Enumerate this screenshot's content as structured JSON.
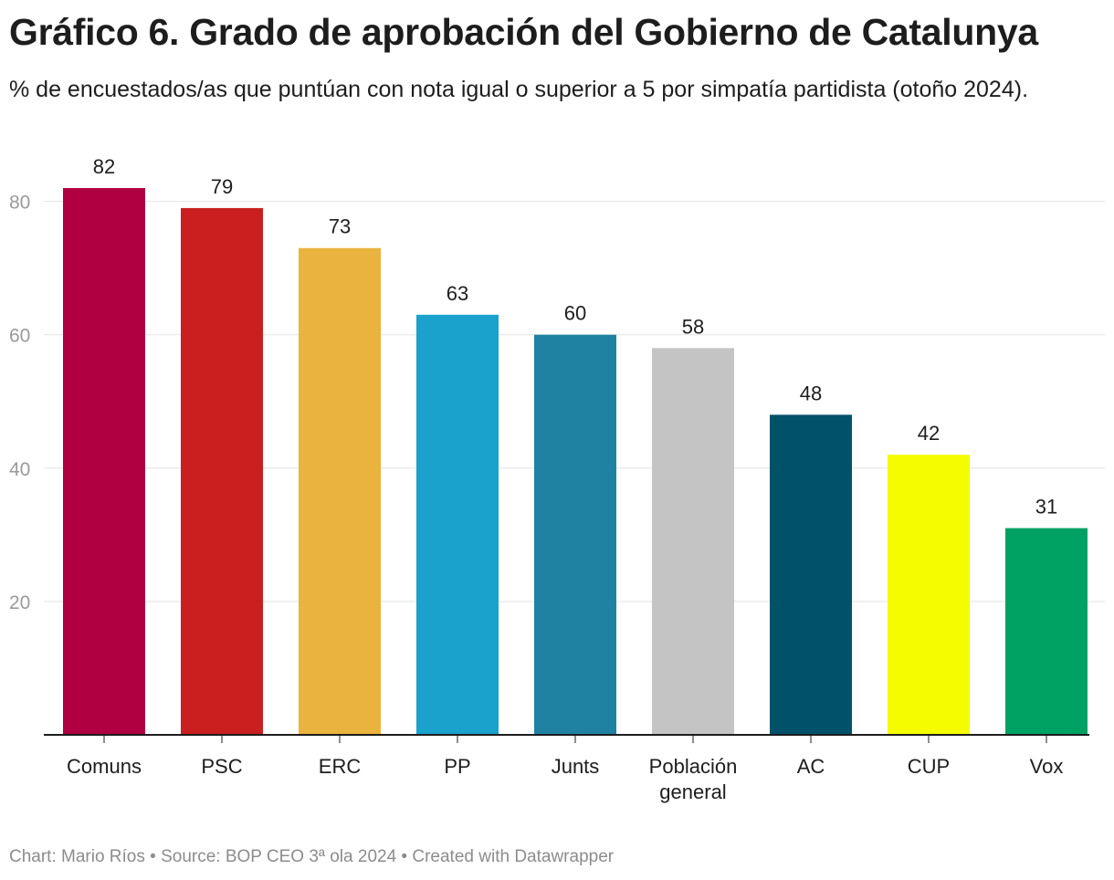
{
  "title": "Gráfico 6. Grado de aprobación del Gobierno de Catalunya",
  "subtitle": "% de encuestados/as que puntúan con nota igual o superior a 5 por simpatía partidista (otoño 2024).",
  "footer": {
    "author": "Chart: Mario Ríos",
    "separator": " • ",
    "source": "Source: BOP CEO 3ª ola 2024",
    "credit": "Created with Datawrapper"
  },
  "chart_data": {
    "type": "bar",
    "title": "Gráfico 6. Grado de aprobación del Gobierno de Catalunya",
    "subtitle": "% de encuestados/as que puntúan con nota igual o superior a 5 por simpatía partidista (otoño 2024).",
    "xlabel": "",
    "ylabel": "",
    "ylim": [
      0,
      82
    ],
    "yticks": [
      20,
      40,
      60,
      80
    ],
    "grid": true,
    "categories": [
      "Comuns",
      "PSC",
      "ERC",
      "PP",
      "Junts",
      "Población general",
      "AC",
      "CUP",
      "Vox"
    ],
    "values": [
      82,
      79,
      73,
      63,
      60,
      58,
      48,
      42,
      31
    ],
    "colors": [
      "#b00042",
      "#c91f1f",
      "#e9b33d",
      "#1aa1cc",
      "#1f82a2",
      "#c4c4c4",
      "#02516a",
      "#f5fc00",
      "#00a263"
    ]
  }
}
